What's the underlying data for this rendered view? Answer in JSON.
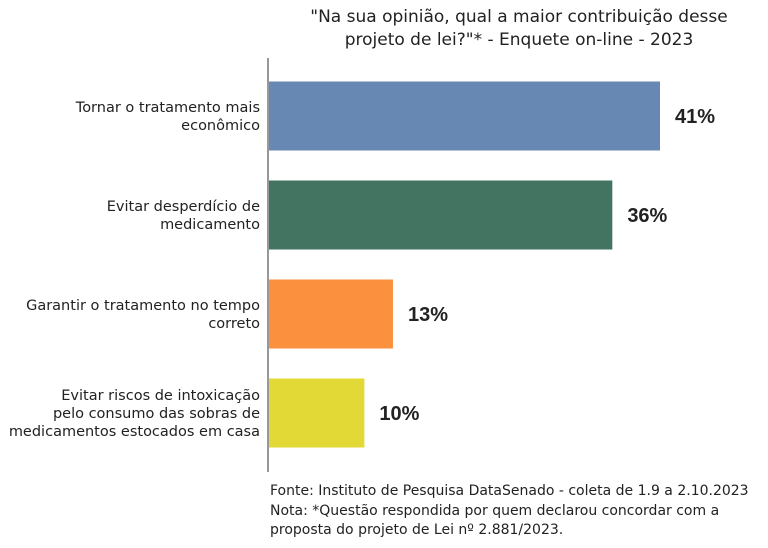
{
  "chart_data": {
    "type": "bar",
    "orientation": "horizontal",
    "title_lines": [
      "\"Na sua opinião, qual a maior contribuição desse",
      "projeto de lei?\"* - Enquete on-line - 2023"
    ],
    "categories": [
      [
        "Tornar o tratamento mais",
        "econômico"
      ],
      [
        "Evitar desperdício de",
        "medicamento"
      ],
      [
        "Garantir o tratamento no tempo",
        "correto"
      ],
      [
        "Evitar riscos de intoxicação",
        "pelo consumo das sobras de",
        "medicamentos estocados em casa"
      ]
    ],
    "values": [
      41,
      36,
      13,
      10
    ],
    "value_labels": [
      "41%",
      "36%",
      "13%",
      "10%"
    ],
    "colors": [
      "#6688b3",
      "#437462",
      "#fb913f",
      "#e3d936"
    ],
    "xlim": [
      0,
      41
    ],
    "grid": false,
    "legend": "none"
  },
  "footnote": {
    "lines": [
      "Fonte: Instituto de Pesquisa DataSenado - coleta de 1.9 a 2.10.2023",
      "Nota: *Questão respondida por quem declarou concordar com a",
      "proposta do projeto de Lei nº 2.881/2023."
    ]
  }
}
